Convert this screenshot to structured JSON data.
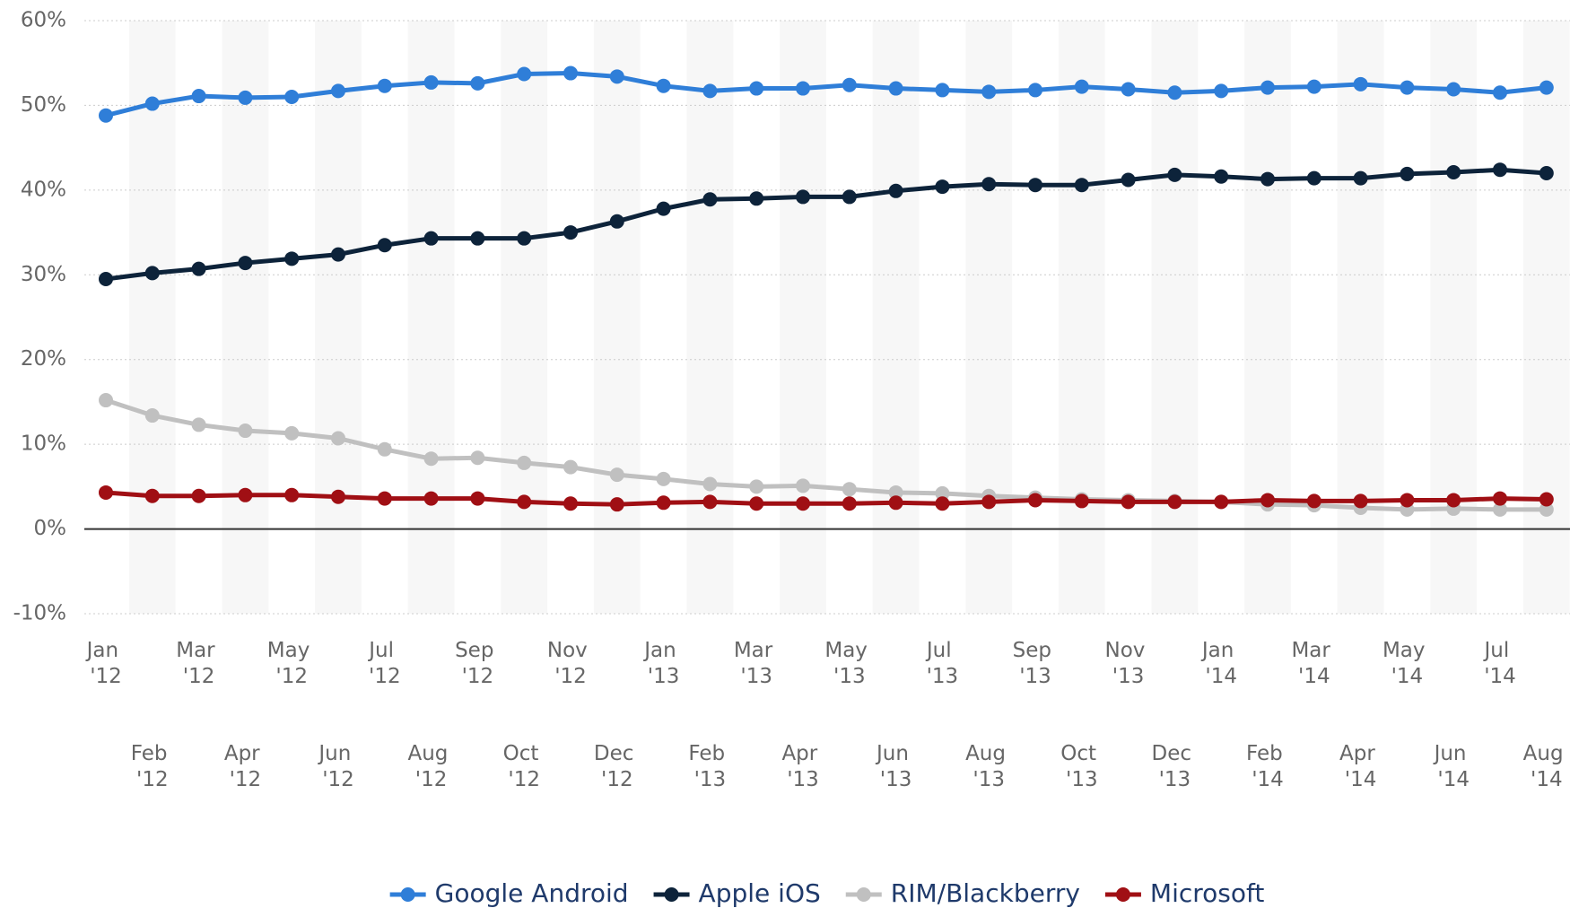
{
  "chart_data": {
    "type": "line",
    "categories": [
      "Jan '12",
      "Feb '12",
      "Mar '12",
      "Apr '12",
      "May '12",
      "Jun '12",
      "Jul '12",
      "Aug '12",
      "Sep '12",
      "Oct '12",
      "Nov '12",
      "Dec '12",
      "Jan '13",
      "Feb '13",
      "Mar '13",
      "Apr '13",
      "May '13",
      "Jun '13",
      "Jul '13",
      "Aug '13",
      "Sep '13",
      "Oct '13",
      "Nov '13",
      "Dec '13",
      "Jan '14",
      "Feb '14",
      "Mar '14",
      "Apr '14",
      "May '14",
      "Jun '14",
      "Jul '14",
      "Aug '14"
    ],
    "series": [
      {
        "name": "Google Android",
        "color": "#2f7ed8",
        "values": [
          48.8,
          50.2,
          51.1,
          50.9,
          51.0,
          51.7,
          52.3,
          52.7,
          52.6,
          53.7,
          53.8,
          53.4,
          52.3,
          51.7,
          52.0,
          52.0,
          52.4,
          52.0,
          51.8,
          51.6,
          51.8,
          52.2,
          51.9,
          51.5,
          51.7,
          52.1,
          52.2,
          52.5,
          52.1,
          51.9,
          51.5,
          52.1
        ]
      },
      {
        "name": "Apple iOS",
        "color": "#0d233a",
        "values": [
          29.5,
          30.2,
          30.7,
          31.4,
          31.9,
          32.4,
          33.5,
          34.3,
          34.3,
          34.3,
          35.0,
          36.3,
          37.8,
          38.9,
          39.0,
          39.2,
          39.2,
          39.9,
          40.4,
          40.7,
          40.6,
          40.6,
          41.2,
          41.8,
          41.6,
          41.3,
          41.4,
          41.4,
          41.9,
          42.1,
          42.4,
          42.0
        ]
      },
      {
        "name": "RIM/Blackberry",
        "color": "#c0c0c0",
        "values": [
          15.2,
          13.4,
          12.3,
          11.6,
          11.3,
          10.7,
          9.4,
          8.3,
          8.4,
          7.8,
          7.3,
          6.4,
          5.9,
          5.3,
          5.0,
          5.1,
          4.7,
          4.3,
          4.2,
          3.9,
          3.7,
          3.5,
          3.4,
          3.3,
          3.2,
          2.9,
          2.8,
          2.5,
          2.3,
          2.4,
          2.3,
          2.3
        ]
      },
      {
        "name": "Microsoft",
        "color": "#a00f14",
        "values": [
          4.3,
          3.9,
          3.9,
          4.0,
          4.0,
          3.8,
          3.6,
          3.6,
          3.6,
          3.2,
          3.0,
          2.9,
          3.1,
          3.2,
          3.0,
          3.0,
          3.0,
          3.1,
          3.0,
          3.2,
          3.4,
          3.3,
          3.2,
          3.2,
          3.2,
          3.4,
          3.3,
          3.3,
          3.4,
          3.4,
          3.6,
          3.5
        ]
      }
    ],
    "ylim": [
      -10,
      60
    ],
    "yticks": [
      {
        "value": -10,
        "label": "-10%"
      },
      {
        "value": 0,
        "label": "0%"
      },
      {
        "value": 10,
        "label": "10%"
      },
      {
        "value": 20,
        "label": "20%"
      },
      {
        "value": 30,
        "label": "30%"
      },
      {
        "value": 40,
        "label": "40%"
      },
      {
        "value": 50,
        "label": "50%"
      },
      {
        "value": 60,
        "label": "60%"
      }
    ],
    "grid": true,
    "legend": "bottom"
  }
}
